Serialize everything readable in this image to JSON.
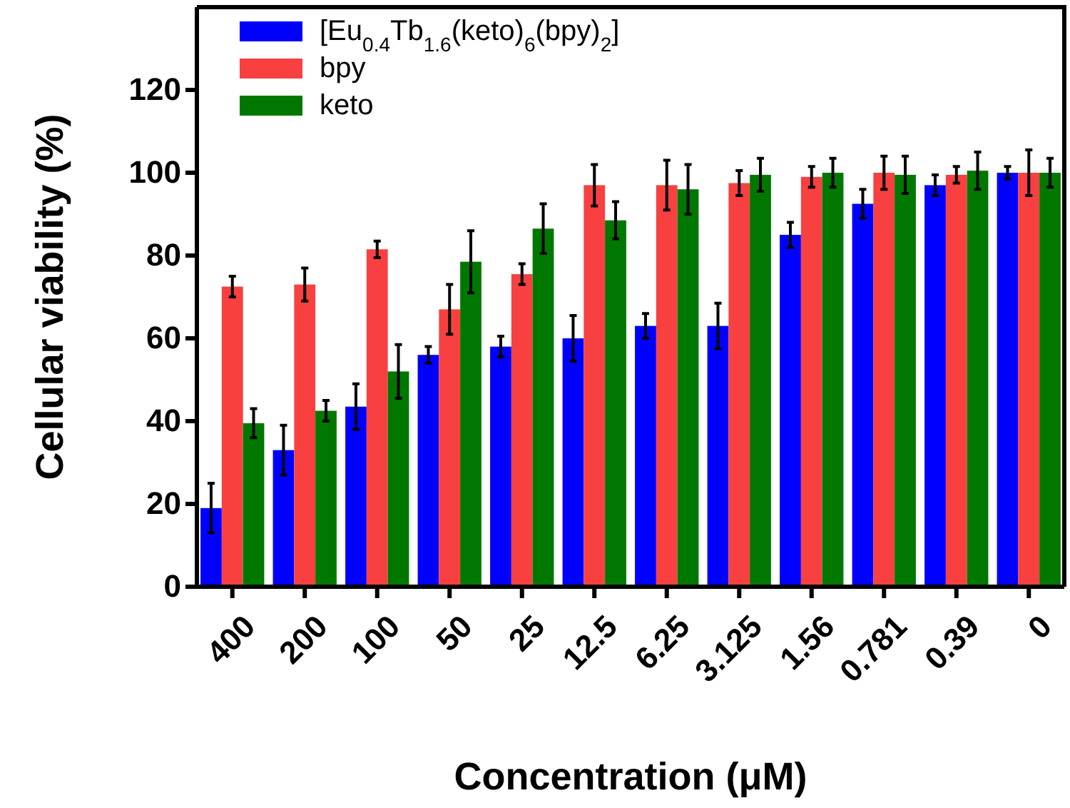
{
  "chart_data": {
    "type": "bar",
    "xlabel": "Concentration (μM)",
    "ylabel": "Cellular viability (%)",
    "categories": [
      "400",
      "200",
      "100",
      "50",
      "25",
      "12.5",
      "6.25",
      "3.125",
      "1.56",
      "0.781",
      "0.39",
      "0"
    ],
    "series": [
      {
        "name": "[Eu$_{0.4}$Tb$_{1.6}$(keto)$_{6}$(bpy)$_{2}$]",
        "color": "#0000ff",
        "values": [
          19,
          33,
          43.5,
          56,
          58,
          60,
          63,
          63,
          85,
          92.5,
          97,
          100
        ],
        "errors": [
          6,
          6,
          5.5,
          2,
          2.5,
          5.5,
          3,
          5.5,
          3,
          3.5,
          2.5,
          1.5
        ]
      },
      {
        "name": "bpy",
        "color": "#f84040",
        "values": [
          72.5,
          73,
          81.5,
          67,
          75.5,
          97,
          97,
          97.5,
          99,
          100,
          99.5,
          100
        ],
        "errors": [
          2.5,
          4,
          2,
          6,
          2.5,
          5,
          6,
          3,
          2.5,
          4,
          2,
          5.5
        ]
      },
      {
        "name": "keto",
        "color": "#007800",
        "values": [
          39.5,
          42.5,
          52,
          78.5,
          86.5,
          88.5,
          96,
          99.5,
          100,
          99.5,
          100.5,
          100
        ],
        "errors": [
          3.5,
          2.5,
          6.5,
          7.5,
          6,
          4.5,
          6,
          4,
          3.5,
          4.5,
          4.5,
          3.5
        ]
      }
    ],
    "ylim": [
      0,
      140
    ],
    "yticks": [
      0,
      20,
      40,
      60,
      80,
      100,
      120
    ],
    "grid": false,
    "legend": "top left"
  }
}
